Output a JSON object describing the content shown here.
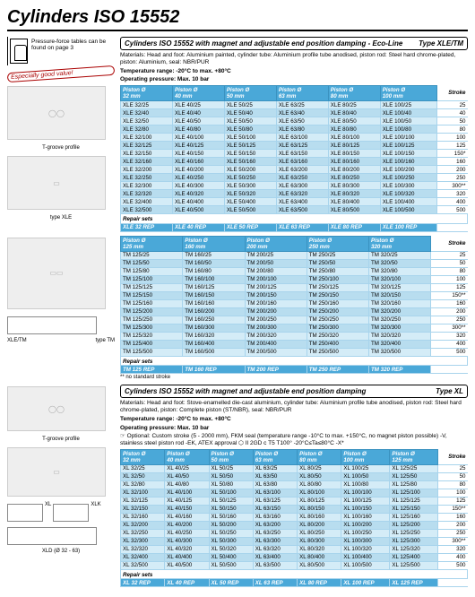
{
  "page_title": "Cylinders ISO 15552",
  "pressure_note": "Pressure-force tables can be found on page 3",
  "badge_text": "Especially good value!",
  "sections": {
    "eco": {
      "title": "Cylinders ISO 15552 with magnet and adjustable end position damping - Eco-Line",
      "type": "Type XLE/TM",
      "materials": "Materials: Head and foot: Aluminium painted, cylinder tube: Aluminium profile tube anodised, piston rod: Steel hard chrome-plated, piston: Aluminium, seal: NBR/PUR",
      "temp": "Temperature range: -20°C to max. +80°C",
      "press": "Operating pressure: Max. 10 bar"
    },
    "eco2": {
      "footnote": "** no standard stroke"
    },
    "xl": {
      "title": "Cylinders ISO 15552 with magnet and adjustable end position damping",
      "type": "Type XL",
      "materials": "Materials: Head and foot: Stove-enamelled die-cast aluminium, cylinder tube: Aluminium profile tube anodised, piston rod: Steel hard chrome-plated, piston: Complete piston (ST/NBR), seal: NBR/PUR",
      "temp": "Temperature range: -20°C to max. +80°C",
      "press": "Operating pressure: Max. 10 bar",
      "optional": "☞ Optional: Custom stroke (5 - 2000 mm), FKM seal (temperature range -10°C to max. +150°C, no magnet piston possible) -V, stainless steel piston rod -EK, ATEX approval ⬡ II 2GD c T5 T100° -20°C≤Ta≤80°C -X*"
    }
  },
  "captions": {
    "tgroove": "T-groove profile",
    "type_xle": "type XLE",
    "xle_tm": "XLE/TM",
    "type_tm": "type TM",
    "xl": "XL",
    "xlk": "XLK",
    "xld": "XLD (Ø 32 - 63)"
  },
  "tables": {
    "t1": {
      "headers": [
        "Piston Ø\n32 mm",
        "Piston Ø\n40 mm",
        "Piston Ø\n50 mm",
        "Piston Ø\n63 mm",
        "Piston Ø\n80 mm",
        "Piston Ø\n100 mm"
      ],
      "stroke_label": "Stroke",
      "rows": [
        [
          "XLE 32/25",
          "XLE 40/25",
          "XLE 50/25",
          "XLE 63/25",
          "XLE 80/25",
          "XLE 100/25",
          "25"
        ],
        [
          "XLE 32/40",
          "XLE 40/40",
          "XLE 50/40",
          "XLE 63/40",
          "XLE 80/40",
          "XLE 100/40",
          "40"
        ],
        [
          "XLE 32/50",
          "XLE 40/50",
          "XLE 50/50",
          "XLE 63/50",
          "XLE 80/50",
          "XLE 100/50",
          "50"
        ],
        [
          "XLE 32/80",
          "XLE 40/80",
          "XLE 50/80",
          "XLE 63/80",
          "XLE 80/80",
          "XLE 100/80",
          "80"
        ],
        [
          "XLE 32/100",
          "XLE 40/100",
          "XLE 50/100",
          "XLE 63/100",
          "XLE 80/100",
          "XLE 100/100",
          "100"
        ],
        [
          "XLE 32/125",
          "XLE 40/125",
          "XLE 50/125",
          "XLE 63/125",
          "XLE 80/125",
          "XLE 100/125",
          "125"
        ],
        [
          "XLE 32/150",
          "XLE 40/150",
          "XLE 50/150",
          "XLE 63/150",
          "XLE 80/150",
          "XLE 100/150",
          "150*"
        ],
        [
          "XLE 32/160",
          "XLE 40/160",
          "XLE 50/160",
          "XLE 63/160",
          "XLE 80/160",
          "XLE 100/160",
          "160"
        ],
        [
          "XLE 32/200",
          "XLE 40/200",
          "XLE 50/200",
          "XLE 63/200",
          "XLE 80/200",
          "XLE 100/200",
          "200"
        ],
        [
          "XLE 32/250",
          "XLE 40/250",
          "XLE 50/250",
          "XLE 63/250",
          "XLE 80/250",
          "XLE 100/250",
          "250"
        ],
        [
          "XLE 32/300",
          "XLE 40/300",
          "XLE 50/300",
          "XLE 63/300",
          "XLE 80/300",
          "XLE 100/300",
          "300**"
        ],
        [
          "XLE 32/320",
          "XLE 40/320",
          "XLE 50/320",
          "XLE 63/320",
          "XLE 80/320",
          "XLE 100/320",
          "320"
        ],
        [
          "XLE 32/400",
          "XLE 40/400",
          "XLE 50/400",
          "XLE 63/400",
          "XLE 80/400",
          "XLE 100/400",
          "400"
        ],
        [
          "XLE 32/500",
          "XLE 40/500",
          "XLE 50/500",
          "XLE 63/500",
          "XLE 80/500",
          "XLE 100/500",
          "500"
        ]
      ],
      "repair_label": "Repair sets",
      "repair_row": [
        "XLE 32 REP",
        "XLE 40 REP",
        "XLE 50 REP",
        "XLE 63 REP",
        "XLE 80 REP",
        "XLE 100 REP"
      ]
    },
    "t2": {
      "headers": [
        "Piston Ø\n125 mm",
        "Piston Ø\n160 mm",
        "Piston Ø\n200 mm",
        "Piston Ø\n250 mm",
        "Piston Ø\n320 mm"
      ],
      "stroke_label": "Stroke",
      "rows": [
        [
          "TM 125/25",
          "TM 160/25",
          "TM 200/25",
          "TM 250/25",
          "TM 320/25",
          "25"
        ],
        [
          "TM 125/50",
          "TM 160/50",
          "TM 200/50",
          "TM 250/50",
          "TM 320/50",
          "50"
        ],
        [
          "TM 125/80",
          "TM 160/80",
          "TM 200/80",
          "TM 250/80",
          "TM 320/80",
          "80"
        ],
        [
          "TM 125/100",
          "TM 160/100",
          "TM 200/100",
          "TM 250/100",
          "TM 320/100",
          "100"
        ],
        [
          "TM 125/125",
          "TM 160/125",
          "TM 200/125",
          "TM 250/125",
          "TM 320/125",
          "125"
        ],
        [
          "TM 125/150",
          "TM 160/150",
          "TM 200/150",
          "TM 250/150",
          "TM 320/150",
          "150**"
        ],
        [
          "TM 125/160",
          "TM 160/160",
          "TM 200/160",
          "TM 250/160",
          "TM 320/160",
          "160"
        ],
        [
          "TM 125/200",
          "TM 160/200",
          "TM 200/200",
          "TM 250/200",
          "TM 320/200",
          "200"
        ],
        [
          "TM 125/250",
          "TM 160/250",
          "TM 200/250",
          "TM 250/250",
          "TM 320/250",
          "250"
        ],
        [
          "TM 125/300",
          "TM 160/300",
          "TM 200/300",
          "TM 250/300",
          "TM 320/300",
          "300**"
        ],
        [
          "TM 125/320",
          "TM 160/320",
          "TM 200/320",
          "TM 250/320",
          "TM 320/320",
          "320"
        ],
        [
          "TM 125/400",
          "TM 160/400",
          "TM 200/400",
          "TM 250/400",
          "TM 320/400",
          "400"
        ],
        [
          "TM 125/500",
          "TM 160/500",
          "TM 200/500",
          "TM 250/500",
          "TM 320/500",
          "500"
        ]
      ],
      "repair_label": "Repair sets",
      "repair_row": [
        "TM 125 REP",
        "TM 160 REP",
        "TM 200 REP",
        "TM 250 REP",
        "TM 320 REP"
      ]
    },
    "t3": {
      "headers": [
        "Piston Ø\n32 mm",
        "Piston Ø\n40 mm",
        "Piston Ø\n50 mm",
        "Piston Ø\n63 mm",
        "Piston Ø\n80 mm",
        "Piston Ø\n100 mm",
        "Piston Ø\n125 mm"
      ],
      "stroke_label": "Stroke",
      "rows": [
        [
          "XL 32/25",
          "XL 40/25",
          "XL 50/25",
          "XL 63/25",
          "XL 80/25",
          "XL 100/25",
          "XL 125/25",
          "25"
        ],
        [
          "XL 32/50",
          "XL 40/50",
          "XL 50/50",
          "XL 63/50",
          "XL 80/50",
          "XL 100/50",
          "XL 125/50",
          "50"
        ],
        [
          "XL 32/80",
          "XL 40/80",
          "XL 50/80",
          "XL 63/80",
          "XL 80/80",
          "XL 100/80",
          "XL 125/80",
          "80"
        ],
        [
          "XL 32/100",
          "XL 40/100",
          "XL 50/100",
          "XL 63/100",
          "XL 80/100",
          "XL 100/100",
          "XL 125/100",
          "100"
        ],
        [
          "XL 32/125",
          "XL 40/125",
          "XL 50/125",
          "XL 63/125",
          "XL 80/125",
          "XL 100/125",
          "XL 125/125",
          "125"
        ],
        [
          "XL 32/150",
          "XL 40/150",
          "XL 50/150",
          "XL 63/150",
          "XL 80/150",
          "XL 100/150",
          "XL 125/150",
          "150**"
        ],
        [
          "XL 32/160",
          "XL 40/160",
          "XL 50/160",
          "XL 63/160",
          "XL 80/160",
          "XL 100/160",
          "XL 125/160",
          "160"
        ],
        [
          "XL 32/200",
          "XL 40/200",
          "XL 50/200",
          "XL 63/200",
          "XL 80/200",
          "XL 100/200",
          "XL 125/200",
          "200"
        ],
        [
          "XL 32/250",
          "XL 40/250",
          "XL 50/250",
          "XL 63/250",
          "XL 80/250",
          "XL 100/250",
          "XL 125/250",
          "250"
        ],
        [
          "XL 32/300",
          "XL 40/300",
          "XL 50/300",
          "XL 63/300",
          "XL 80/300",
          "XL 100/300",
          "XL 125/300",
          "300**"
        ],
        [
          "XL 32/320",
          "XL 40/320",
          "XL 50/320",
          "XL 63/320",
          "XL 80/320",
          "XL 100/320",
          "XL 125/320",
          "320"
        ],
        [
          "XL 32/400",
          "XL 40/400",
          "XL 50/400",
          "XL 63/400",
          "XL 80/400",
          "XL 100/400",
          "XL 125/400",
          "400"
        ],
        [
          "XL 32/500",
          "XL 40/500",
          "XL 50/500",
          "XL 63/500",
          "XL 80/500",
          "XL 100/500",
          "XL 125/500",
          "500"
        ]
      ],
      "repair_label": "Repair sets",
      "repair_row": [
        "XL 32 REP",
        "XL 40 REP",
        "XL 50 REP",
        "XL 63 REP",
        "XL 80 REP",
        "XL 100 REP",
        "XL 125 REP"
      ]
    }
  },
  "colors": {
    "header_bg": "#4aa8d8",
    "row_a": "#d4ecf7",
    "row_b": "#b8ddef"
  }
}
